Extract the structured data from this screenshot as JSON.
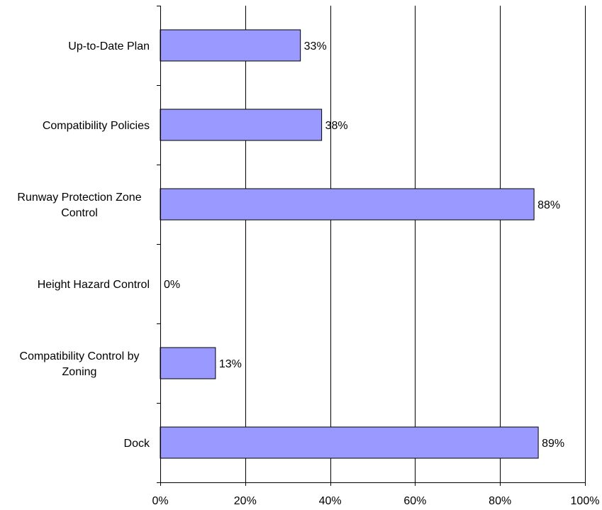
{
  "chart_data": {
    "type": "bar",
    "orientation": "horizontal",
    "title": "",
    "xlabel": "",
    "ylabel": "",
    "categories": [
      "Up-to-Date Plan",
      "Compatibility Policies",
      "Runway Protection Zone Control",
      "Height Hazard Control",
      "Compatibility Control by Zoning",
      "Dock"
    ],
    "category_lines": [
      [
        "Up-to-Date Plan"
      ],
      [
        "Compatibility Policies"
      ],
      [
        "Runway Protection Zone",
        "Control"
      ],
      [
        "Height Hazard Control"
      ],
      [
        "Compatibility Control by",
        "Zoning"
      ],
      [
        "Dock"
      ]
    ],
    "values": [
      33,
      38,
      88,
      0,
      13,
      89
    ],
    "data_labels": [
      "33%",
      "38%",
      "88%",
      "0%",
      "13%",
      "89%"
    ],
    "xlim": [
      0,
      100
    ],
    "xticks": [
      0,
      20,
      40,
      60,
      80,
      100
    ],
    "xtick_labels": [
      "0%",
      "20%",
      "40%",
      "60%",
      "80%",
      "100%"
    ],
    "grid": "vertical",
    "legend": "none",
    "colors": {
      "bar_fill": "#9999ff",
      "bar_stroke": "#000000",
      "grid": "#000000",
      "axis": "#000000",
      "background": "#ffffff"
    }
  }
}
